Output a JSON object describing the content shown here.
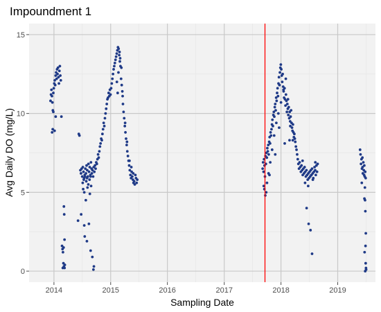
{
  "chart_data": {
    "type": "scatter",
    "title": "Impoundment 1",
    "xlabel": "Sampling Date",
    "ylabel": "Avg Daily DO (mg/L)",
    "xlim": [
      "2013-07-25",
      "2019-09-01"
    ],
    "ylim": [
      -0.7,
      15.7
    ],
    "x_ticks": [
      "2014",
      "2015",
      "2016",
      "2017",
      "2018",
      "2019"
    ],
    "y_ticks": [
      0,
      5,
      10,
      15
    ],
    "grid": true,
    "legend": "none",
    "point_color": "#1f3a87",
    "vline": {
      "x": "2017-09-20",
      "color": "#ff0000"
    },
    "series": [
      {
        "x": [
          "2013-12-10",
          "2013-12-13",
          "2013-12-16",
          "2013-12-19",
          "2013-12-22",
          "2013-12-25",
          "2013-12-28",
          "2013-12-31",
          "2014-01-03",
          "2014-01-06",
          "2014-01-09",
          "2014-01-12",
          "2014-01-15",
          "2014-01-18",
          "2014-01-21",
          "2014-01-24",
          "2014-01-27",
          "2014-01-30",
          "2014-02-02",
          "2014-02-05",
          "2014-02-08",
          "2014-02-11",
          "2014-02-14",
          "2013-12-20",
          "2013-12-24",
          "2013-12-28",
          "2014-01-05",
          "2014-01-12",
          "2014-02-18",
          "2014-02-22",
          "2014-02-25",
          "2014-02-28",
          "2014-03-03",
          "2014-03-06",
          "2014-03-10",
          "2014-02-27",
          "2014-03-04",
          "2014-03-08",
          "2014-03-06",
          "2014-03-10",
          "2014-03-12",
          "2014-06-10",
          "2014-06-14",
          "2014-06-20",
          "2014-06-24",
          "2014-06-28",
          "2014-07-02",
          "2014-07-06",
          "2014-07-10",
          "2014-07-14",
          "2014-07-18",
          "2014-07-22",
          "2014-07-26",
          "2014-07-30",
          "2014-08-03",
          "2014-08-07",
          "2014-08-11",
          "2014-08-15",
          "2014-08-19",
          "2014-08-23",
          "2014-08-27",
          "2014-08-31",
          "2014-07-05",
          "2014-07-12",
          "2014-07-20",
          "2014-07-28",
          "2014-08-02",
          "2014-08-10",
          "2014-08-18",
          "2014-08-25",
          "2014-07-08",
          "2014-07-15",
          "2014-08-05",
          "2014-08-20",
          "2014-07-25",
          "2014-08-28",
          "2014-09-02",
          "2014-09-06",
          "2014-09-10",
          "2014-09-14",
          "2014-09-18",
          "2014-09-22",
          "2014-09-26",
          "2014-09-30",
          "2014-10-04",
          "2014-10-08",
          "2014-10-12",
          "2014-10-16",
          "2014-10-20",
          "2014-10-24",
          "2014-10-28",
          "2014-11-01",
          "2014-11-05",
          "2014-11-09",
          "2014-11-13",
          "2014-11-17",
          "2014-11-21",
          "2014-11-25",
          "2014-11-29",
          "2014-12-03",
          "2014-12-07",
          "2014-12-11",
          "2014-12-15",
          "2014-12-19",
          "2014-12-23",
          "2014-12-27",
          "2014-12-31",
          "2015-01-04",
          "2015-01-08",
          "2015-01-12",
          "2015-01-16",
          "2015-01-20",
          "2015-01-24",
          "2015-01-28",
          "2015-02-01",
          "2015-02-05",
          "2015-02-09",
          "2015-02-13",
          "2015-02-17",
          "2015-02-21",
          "2015-02-25",
          "2015-03-01",
          "2015-03-05",
          "2015-03-09",
          "2015-03-13",
          "2015-03-17",
          "2015-03-21",
          "2015-03-25",
          "2015-03-29",
          "2015-04-02",
          "2015-04-06",
          "2015-04-10",
          "2015-04-14",
          "2015-04-18",
          "2015-04-22",
          "2015-04-26",
          "2015-04-30",
          "2015-05-04",
          "2015-05-08",
          "2015-05-12",
          "2015-05-16",
          "2015-05-20",
          "2015-05-24",
          "2015-05-28",
          "2015-06-01",
          "2015-06-05",
          "2015-06-09",
          "2015-06-13",
          "2015-06-17",
          "2015-06-21",
          "2015-02-10",
          "2015-02-15",
          "2015-02-20",
          "2015-02-27",
          "2015-03-03",
          "2015-03-11",
          "2015-03-19",
          "2015-04-04",
          "2015-04-16",
          "2015-05-02",
          "2015-05-14",
          "2015-05-26",
          "2014-06-05",
          "2014-06-25",
          "2014-07-15",
          "2014-08-01",
          "2014-08-25",
          "2014-09-05",
          "2014-09-15",
          "2014-09-12",
          "2014-07-18",
          "2014-08-14",
          "2017-09-05",
          "2017-09-08",
          "2017-09-11",
          "2017-09-14",
          "2017-09-17",
          "2017-09-20",
          "2017-09-23",
          "2017-09-26",
          "2017-09-29",
          "2017-10-02",
          "2017-10-05",
          "2017-10-08",
          "2017-10-11",
          "2017-10-14",
          "2017-10-17",
          "2017-10-20",
          "2017-10-23",
          "2017-10-26",
          "2017-10-29",
          "2017-11-01",
          "2017-11-04",
          "2017-11-07",
          "2017-11-10",
          "2017-11-13",
          "2017-11-16",
          "2017-11-19",
          "2017-11-22",
          "2017-11-25",
          "2017-11-28",
          "2017-12-01",
          "2017-12-04",
          "2017-12-07",
          "2017-12-10",
          "2017-12-13",
          "2017-12-16",
          "2017-12-19",
          "2017-12-22",
          "2017-12-25",
          "2017-12-28",
          "2017-12-31",
          "2018-01-03",
          "2018-01-06",
          "2018-01-09",
          "2018-01-12",
          "2018-01-15",
          "2018-01-18",
          "2018-01-21",
          "2018-01-24",
          "2018-01-27",
          "2018-01-30",
          "2018-02-02",
          "2018-02-05",
          "2018-02-08",
          "2018-02-11",
          "2018-02-14",
          "2018-02-17",
          "2018-02-20",
          "2018-02-23",
          "2018-02-26",
          "2018-03-01",
          "2018-03-04",
          "2018-03-07",
          "2018-03-10",
          "2018-03-13",
          "2018-03-16",
          "2018-03-19",
          "2018-03-22",
          "2018-03-25",
          "2018-03-28",
          "2018-03-31",
          "2017-09-12",
          "2017-09-22",
          "2017-10-03",
          "2017-10-13",
          "2017-10-24",
          "2017-11-05",
          "2017-11-18",
          "2017-12-02",
          "2017-12-15",
          "2018-01-01",
          "2018-01-17",
          "2018-02-01",
          "2018-02-15",
          "2018-03-02",
          "2018-03-18",
          "2017-09-16",
          "2017-09-28",
          "2017-10-19",
          "2017-11-25",
          "2017-12-20",
          "2018-01-25",
          "2018-02-25",
          "2018-04-03",
          "2018-04-07",
          "2018-04-11",
          "2018-04-15",
          "2018-04-19",
          "2018-04-23",
          "2018-04-27",
          "2018-05-01",
          "2018-05-05",
          "2018-05-09",
          "2018-05-13",
          "2018-05-17",
          "2018-05-21",
          "2018-05-25",
          "2018-05-29",
          "2018-06-02",
          "2018-06-06",
          "2018-06-10",
          "2018-06-14",
          "2018-06-18",
          "2018-06-22",
          "2018-06-26",
          "2018-06-30",
          "2018-07-04",
          "2018-07-08",
          "2018-07-12",
          "2018-07-16",
          "2018-07-20",
          "2018-07-24",
          "2018-07-28",
          "2018-08-01",
          "2018-08-05",
          "2018-08-09",
          "2018-08-13",
          "2018-08-17",
          "2018-08-21",
          "2018-08-25",
          "2018-05-20",
          "2018-06-05",
          "2018-06-25",
          "2018-07-15",
          "2018-07-25",
          "2018-08-10",
          "2018-06-15",
          "2018-06-28",
          "2018-07-10",
          "2018-07-20",
          "2019-05-25",
          "2019-05-28",
          "2019-05-31",
          "2019-06-03",
          "2019-06-06",
          "2019-06-09",
          "2019-06-12",
          "2019-06-15",
          "2019-06-18",
          "2019-06-21",
          "2019-06-24",
          "2019-06-27",
          "2019-06-30",
          "2019-06-10",
          "2019-06-20",
          "2019-06-05",
          "2019-06-25",
          "2019-06-22",
          "2019-06-26",
          "2019-06-28",
          "2019-07-01",
          "2019-06-29",
          "2019-06-23",
          "2019-06-30",
          "2019-07-02",
          "2019-07-03",
          "2019-06-27"
        ],
        "y": [
          10.8,
          11.2,
          11.5,
          11.1,
          10.7,
          10.2,
          11.3,
          11.6,
          11.9,
          12.1,
          11.8,
          12.4,
          12.6,
          12.2,
          12.8,
          12.5,
          12.9,
          12.3,
          11.9,
          12.7,
          13.0,
          12.4,
          12.1,
          8.8,
          9.0,
          10.1,
          8.9,
          9.8,
          9.8,
          1.6,
          1.4,
          1.2,
          0.5,
          0.3,
          0.2,
          0.2,
          1.5,
          3.6,
          4.1,
          2.0,
          0.4,
          8.7,
          8.6,
          6.4,
          6.2,
          6.5,
          6.0,
          6.6,
          6.3,
          5.9,
          6.1,
          6.5,
          6.2,
          6.7,
          6.4,
          6.0,
          6.8,
          6.3,
          6.6,
          6.1,
          6.9,
          6.5,
          5.6,
          5.8,
          6.0,
          5.7,
          5.9,
          5.5,
          5.8,
          6.0,
          5.2,
          5.0,
          5.3,
          4.9,
          4.5,
          5.4,
          6.2,
          6.4,
          6.0,
          6.6,
          6.3,
          6.7,
          6.5,
          6.9,
          6.8,
          7.1,
          7.4,
          7.2,
          7.6,
          7.9,
          8.1,
          8.4,
          8.3,
          8.7,
          9.0,
          9.4,
          9.2,
          9.7,
          10.0,
          10.3,
          10.6,
          10.9,
          11.0,
          11.3,
          11.1,
          11.5,
          11.2,
          11.6,
          11.9,
          12.2,
          12.5,
          12.8,
          13.0,
          13.2,
          13.4,
          13.6,
          13.8,
          14.0,
          14.2,
          14.1,
          13.7,
          13.3,
          13.0,
          12.2,
          11.8,
          11.4,
          10.6,
          10.1,
          9.7,
          9.2,
          8.8,
          8.4,
          8.0,
          7.6,
          7.3,
          7.0,
          6.7,
          6.4,
          6.1,
          5.9,
          6.3,
          6.0,
          5.8,
          5.6,
          5.7,
          5.5,
          6.1,
          5.9,
          5.6,
          5.8,
          12.0,
          11.3,
          12.6,
          13.9,
          13.5,
          12.9,
          11.1,
          9.4,
          8.2,
          7.0,
          6.6,
          6.2,
          3.2,
          3.6,
          2.9,
          1.9,
          1.3,
          0.9,
          0.3,
          0.1,
          2.2,
          3.0,
          6.5,
          6.9,
          6.3,
          7.1,
          6.7,
          6.0,
          7.3,
          6.8,
          7.5,
          7.2,
          7.8,
          7.6,
          8.0,
          7.4,
          8.2,
          8.5,
          8.1,
          8.8,
          8.6,
          9.0,
          9.3,
          9.6,
          9.2,
          9.9,
          10.1,
          9.8,
          10.4,
          10.6,
          10.2,
          11.0,
          10.8,
          11.3,
          11.6,
          11.1,
          11.9,
          12.3,
          11.8,
          12.6,
          12.9,
          13.1,
          12.8,
          12.4,
          12.0,
          12.5,
          11.7,
          11.4,
          11.0,
          11.6,
          10.9,
          10.5,
          11.2,
          10.8,
          10.1,
          10.6,
          10.3,
          9.9,
          10.4,
          9.7,
          10.1,
          9.5,
          9.8,
          10.2,
          9.4,
          9.1,
          8.9,
          9.3,
          8.8,
          8.5,
          8.7,
          8.4,
          5.4,
          4.8,
          5.6,
          6.2,
          6.9,
          7.7,
          8.6,
          9.4,
          10.0,
          10.7,
          11.5,
          12.2,
          10.9,
          9.2,
          8.3,
          5.2,
          5.0,
          6.1,
          7.4,
          9.1,
          8.1,
          8.3,
          8.2,
          7.9,
          7.7,
          7.4,
          7.1,
          6.8,
          6.5,
          6.9,
          6.6,
          6.3,
          6.7,
          6.4,
          6.1,
          6.5,
          6.2,
          6.6,
          6.3,
          6.0,
          6.4,
          6.1,
          5.8,
          6.2,
          5.9,
          6.3,
          6.0,
          6.4,
          6.1,
          6.5,
          6.2,
          5.9,
          6.3,
          6.6,
          6.4,
          6.1,
          6.7,
          6.3,
          6.8,
          7.0,
          5.6,
          5.4,
          6.1,
          5.8,
          6.9,
          4.0,
          3.0,
          2.6,
          1.1,
          7.7,
          7.4,
          6.8,
          7.1,
          6.5,
          7.2,
          6.2,
          6.9,
          6.4,
          6.7,
          6.0,
          6.3,
          5.9,
          6.6,
          6.1,
          5.6,
          5.3,
          4.6,
          4.5,
          3.8,
          2.4,
          1.6,
          1.2,
          0.5,
          0.2,
          0.1,
          0.0
        ]
      }
    ]
  }
}
